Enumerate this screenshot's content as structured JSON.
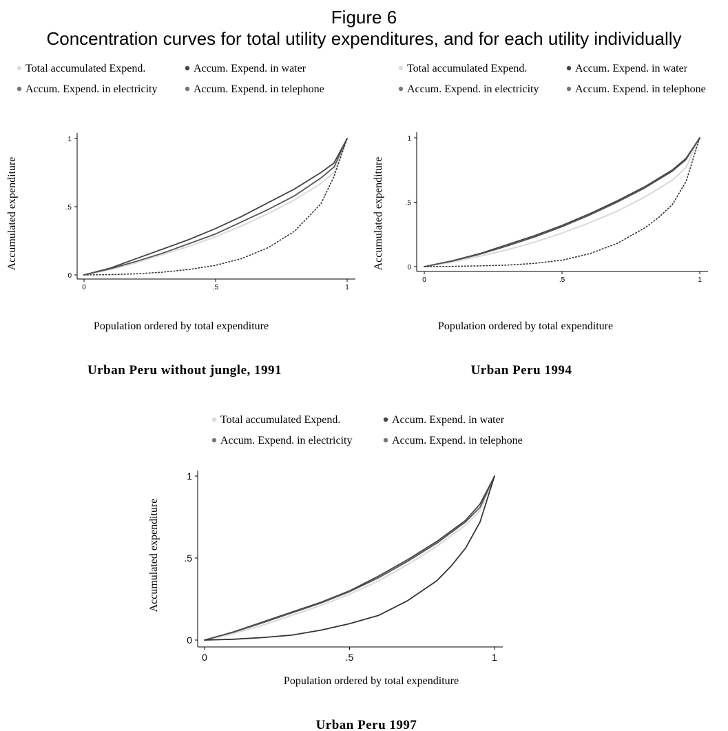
{
  "figure": {
    "title": "Figure 6",
    "subtitle": "Concentration curves for total utility expenditures, and for each utility individually"
  },
  "legend_colors": {
    "total": "#dcdcdc",
    "water": "#444444",
    "electricity": "#777777",
    "telephone": "#777777"
  },
  "chart_data": [
    {
      "type": "line",
      "caption": "Urban Peru without jungle, 1991",
      "xlabel": "Population ordered by total expenditure",
      "ylabel": "Accumulated expenditure",
      "xlim": [
        0,
        1
      ],
      "ylim": [
        0,
        1
      ],
      "xticks": [
        "0",
        ".5",
        "1"
      ],
      "yticks": [
        "0",
        ".5",
        "1"
      ],
      "legend": [
        "Total accumulated Expend.",
        "Accum. Expend. in water",
        "Accum. Expend. in electricity",
        "Accum. Expend. in telephone"
      ],
      "legend_position": "top",
      "grid": false,
      "series": [
        {
          "name": "Total accumulated Expend.",
          "color": "#dcdcdc",
          "style": "solid",
          "x": [
            0,
            0.1,
            0.2,
            0.3,
            0.4,
            0.5,
            0.6,
            0.7,
            0.8,
            0.9,
            0.95,
            1
          ],
          "y": [
            0,
            0.04,
            0.09,
            0.15,
            0.21,
            0.28,
            0.36,
            0.45,
            0.55,
            0.67,
            0.75,
            1
          ]
        },
        {
          "name": "Accum. Expend. in water",
          "color": "#444444",
          "style": "solid",
          "x": [
            0,
            0.1,
            0.2,
            0.3,
            0.4,
            0.5,
            0.6,
            0.7,
            0.8,
            0.9,
            0.95,
            1
          ],
          "y": [
            0,
            0.05,
            0.12,
            0.19,
            0.26,
            0.34,
            0.43,
            0.53,
            0.63,
            0.75,
            0.82,
            1
          ]
        },
        {
          "name": "Accum. Expend. in electricity",
          "color": "#555555",
          "style": "solid",
          "x": [
            0,
            0.1,
            0.2,
            0.3,
            0.4,
            0.5,
            0.6,
            0.7,
            0.8,
            0.9,
            0.95,
            1
          ],
          "y": [
            0,
            0.045,
            0.1,
            0.16,
            0.23,
            0.3,
            0.39,
            0.48,
            0.58,
            0.71,
            0.79,
            1
          ]
        },
        {
          "name": "Accum. Expend. in telephone",
          "color": "#333333",
          "style": "dotted",
          "x": [
            0,
            0.1,
            0.2,
            0.3,
            0.4,
            0.5,
            0.6,
            0.7,
            0.8,
            0.85,
            0.9,
            0.95,
            1
          ],
          "y": [
            0,
            0.002,
            0.008,
            0.02,
            0.04,
            0.07,
            0.12,
            0.2,
            0.32,
            0.42,
            0.52,
            0.72,
            1
          ]
        }
      ]
    },
    {
      "type": "line",
      "caption": "Urban Peru 1994",
      "xlabel": "Population ordered by total expenditure",
      "ylabel": "Accumulated expenditure",
      "xlim": [
        0,
        1
      ],
      "ylim": [
        0,
        1
      ],
      "xticks": [
        "0",
        ".5",
        "1"
      ],
      "yticks": [
        "0",
        ".5",
        "1"
      ],
      "legend": [
        "Total accumulated Expend.",
        "Accum. Expend. in water",
        "Accum. Expend. in electricity",
        "Accum. Expend. in telephone"
      ],
      "legend_position": "top",
      "grid": false,
      "series": [
        {
          "name": "Total accumulated Expend.",
          "color": "#dcdcdc",
          "style": "solid",
          "x": [
            0,
            0.1,
            0.2,
            0.3,
            0.4,
            0.5,
            0.6,
            0.7,
            0.8,
            0.9,
            0.95,
            1
          ],
          "y": [
            0,
            0.035,
            0.08,
            0.13,
            0.19,
            0.26,
            0.34,
            0.43,
            0.54,
            0.67,
            0.77,
            1
          ]
        },
        {
          "name": "Accum. Expend. in water",
          "color": "#444444",
          "style": "solid",
          "x": [
            0,
            0.1,
            0.2,
            0.3,
            0.4,
            0.5,
            0.6,
            0.7,
            0.8,
            0.9,
            0.95,
            1
          ],
          "y": [
            0,
            0.045,
            0.1,
            0.17,
            0.24,
            0.32,
            0.41,
            0.51,
            0.62,
            0.75,
            0.84,
            1
          ]
        },
        {
          "name": "Accum. Expend. in electricity",
          "color": "#555555",
          "style": "solid",
          "x": [
            0,
            0.1,
            0.2,
            0.3,
            0.4,
            0.5,
            0.6,
            0.7,
            0.8,
            0.9,
            0.95,
            1
          ],
          "y": [
            0,
            0.042,
            0.095,
            0.16,
            0.23,
            0.31,
            0.4,
            0.5,
            0.61,
            0.74,
            0.83,
            1
          ]
        },
        {
          "name": "Accum. Expend. in telephone",
          "color": "#333333",
          "style": "dotted",
          "x": [
            0,
            0.1,
            0.2,
            0.3,
            0.4,
            0.5,
            0.6,
            0.7,
            0.8,
            0.85,
            0.9,
            0.95,
            1
          ],
          "y": [
            0,
            0.002,
            0.006,
            0.012,
            0.025,
            0.05,
            0.1,
            0.18,
            0.3,
            0.38,
            0.48,
            0.66,
            1
          ]
        }
      ]
    },
    {
      "type": "line",
      "caption": "Urban Peru 1997",
      "xlabel": "Population ordered by total expenditure",
      "ylabel": "Accumulated expenditure",
      "xlim": [
        0,
        1
      ],
      "ylim": [
        0,
        1
      ],
      "xticks": [
        "0",
        ".5",
        "1"
      ],
      "yticks": [
        "0",
        ".5",
        "1"
      ],
      "legend": [
        "Total accumulated Expend.",
        "Accum. Expend. in water",
        "Accum. Expend. in electricity",
        "Accum. Expend. in telephone"
      ],
      "legend_position": "top",
      "grid": false,
      "series": [
        {
          "name": "Total accumulated Expend.",
          "color": "#dcdcdc",
          "style": "solid",
          "x": [
            0,
            0.1,
            0.2,
            0.3,
            0.4,
            0.5,
            0.6,
            0.7,
            0.8,
            0.9,
            0.95,
            1
          ],
          "y": [
            0,
            0.04,
            0.09,
            0.15,
            0.21,
            0.28,
            0.36,
            0.46,
            0.57,
            0.7,
            0.79,
            1
          ]
        },
        {
          "name": "Accum. Expend. in water",
          "color": "#444444",
          "style": "solid",
          "x": [
            0,
            0.1,
            0.2,
            0.3,
            0.4,
            0.5,
            0.6,
            0.7,
            0.8,
            0.9,
            0.95,
            1
          ],
          "y": [
            0,
            0.05,
            0.11,
            0.17,
            0.23,
            0.3,
            0.39,
            0.49,
            0.6,
            0.73,
            0.83,
            1
          ]
        },
        {
          "name": "Accum. Expend. in electricity",
          "color": "#555555",
          "style": "solid",
          "x": [
            0,
            0.1,
            0.2,
            0.3,
            0.4,
            0.5,
            0.6,
            0.7,
            0.8,
            0.9,
            0.95,
            1
          ],
          "y": [
            0,
            0.048,
            0.105,
            0.165,
            0.225,
            0.295,
            0.38,
            0.48,
            0.59,
            0.72,
            0.81,
            1
          ]
        },
        {
          "name": "Accum. Expend. in telephone",
          "color": "#333333",
          "style": "solid",
          "x": [
            0,
            0.1,
            0.2,
            0.3,
            0.4,
            0.5,
            0.6,
            0.7,
            0.8,
            0.85,
            0.9,
            0.95,
            1
          ],
          "y": [
            0,
            0.005,
            0.015,
            0.03,
            0.06,
            0.1,
            0.15,
            0.24,
            0.36,
            0.45,
            0.56,
            0.72,
            1
          ]
        }
      ]
    }
  ]
}
